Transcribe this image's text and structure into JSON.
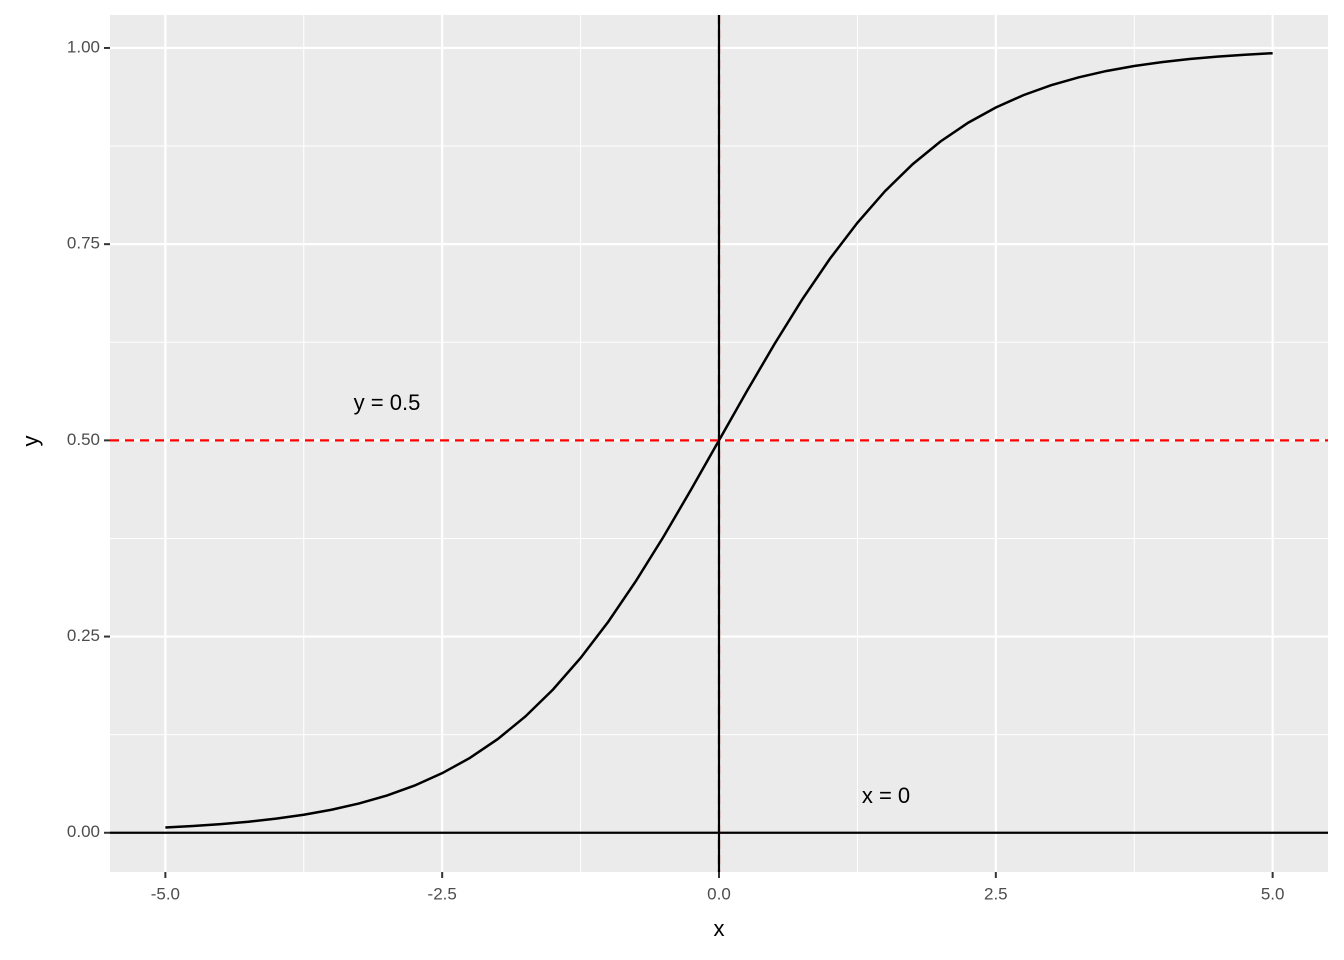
{
  "chart_data": {
    "type": "line",
    "x_label": "x",
    "y_label": "y",
    "x": [
      -5,
      -4.75,
      -4.5,
      -4.25,
      -4,
      -3.75,
      -3.5,
      -3.25,
      -3,
      -2.75,
      -2.5,
      -2.25,
      -2,
      -1.75,
      -1.5,
      -1.25,
      -1,
      -0.75,
      -0.5,
      -0.25,
      0,
      0.25,
      0.5,
      0.75,
      1,
      1.25,
      1.5,
      1.75,
      2,
      2.25,
      2.5,
      2.75,
      3,
      3.25,
      3.5,
      3.75,
      4,
      4.25,
      4.5,
      4.75,
      5
    ],
    "values": [
      0.0067,
      0.0086,
      0.011,
      0.014,
      0.018,
      0.023,
      0.0293,
      0.0374,
      0.0474,
      0.0601,
      0.0759,
      0.0953,
      0.1192,
      0.148,
      0.1824,
      0.2227,
      0.2689,
      0.3208,
      0.3775,
      0.4378,
      0.5,
      0.5622,
      0.6225,
      0.6792,
      0.7311,
      0.7773,
      0.8176,
      0.852,
      0.8808,
      0.9047,
      0.9241,
      0.9399,
      0.9526,
      0.9626,
      0.9707,
      0.977,
      0.982,
      0.986,
      0.989,
      0.9914,
      0.9933
    ],
    "color": "#000000",
    "xlim": [
      -5.5,
      5.5
    ],
    "ylim": [
      -0.05,
      1.042
    ],
    "xticks": [
      {
        "value": -5,
        "label": "-5.0"
      },
      {
        "value": -2.5,
        "label": "-2.5"
      },
      {
        "value": 0,
        "label": "0.0"
      },
      {
        "value": 2.5,
        "label": "2.5"
      },
      {
        "value": 5,
        "label": "5.0"
      }
    ],
    "yticks": [
      {
        "value": 0,
        "label": "0.00"
      },
      {
        "value": 0.25,
        "label": "0.25"
      },
      {
        "value": 0.5,
        "label": "0.50"
      },
      {
        "value": 0.75,
        "label": "0.75"
      },
      {
        "value": 1,
        "label": "1.00"
      }
    ],
    "grid": true,
    "minor_grid": true,
    "hlines": [
      {
        "value": 0.5,
        "color": "#ff0000",
        "dashed": true
      },
      {
        "value": 0,
        "color": "#000000",
        "dashed": false
      }
    ],
    "vlines": [
      {
        "value": 0,
        "color": "#ff0000",
        "dashed": true
      },
      {
        "value": 0,
        "color": "#000000",
        "dashed": false
      }
    ],
    "annotations": [
      "y = 0.5",
      "x = 0"
    ]
  }
}
